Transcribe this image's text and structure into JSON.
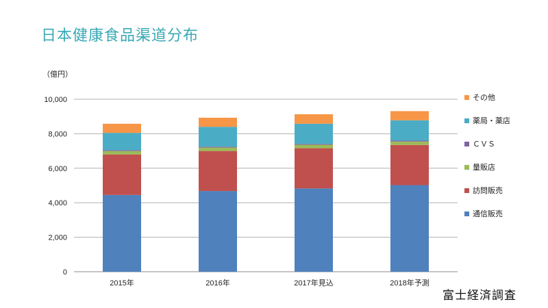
{
  "title": "日本健康食品渠道分布",
  "source": "富士経済調査",
  "chart_data": {
    "type": "bar",
    "stacked": true,
    "ylabel": "（億円）",
    "ylim": [
      0,
      10000
    ],
    "yticks": [
      0,
      2000,
      4000,
      6000,
      8000,
      10000
    ],
    "ytick_labels": [
      "0",
      "2,000",
      "4,000",
      "6,000",
      "8,000",
      "10,000"
    ],
    "grid": true,
    "legend_position": "right",
    "categories": [
      "2015年",
      "2016年",
      "2017年見込",
      "2018年予測"
    ],
    "series": [
      {
        "name": "通信販売",
        "color": "#4f81bd",
        "values": [
          4450,
          4680,
          4830,
          5020
        ]
      },
      {
        "name": "訪問販売",
        "color": "#c0504d",
        "values": [
          2350,
          2320,
          2330,
          2330
        ]
      },
      {
        "name": "量販店",
        "color": "#9bbb59",
        "values": [
          200,
          200,
          200,
          200
        ]
      },
      {
        "name": "ＣＶＳ",
        "color": "#8064a2",
        "values": [
          50,
          50,
          50,
          50
        ]
      },
      {
        "name": "薬局・薬店",
        "color": "#4bacc6",
        "values": [
          1000,
          1150,
          1170,
          1180
        ]
      },
      {
        "name": "その他",
        "color": "#f79646",
        "values": [
          530,
          530,
          550,
          530
        ]
      }
    ]
  }
}
